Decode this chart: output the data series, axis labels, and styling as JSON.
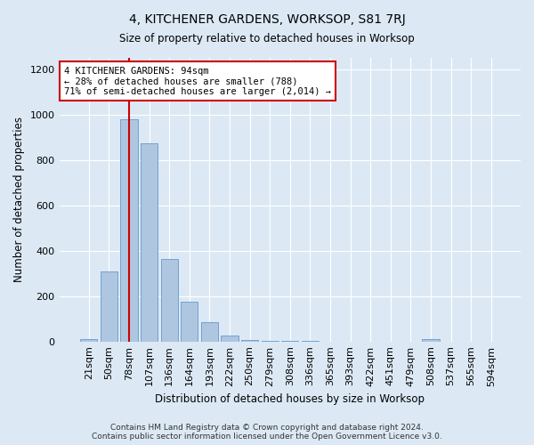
{
  "title": "4, KITCHENER GARDENS, WORKSOP, S81 7RJ",
  "subtitle": "Size of property relative to detached houses in Worksop",
  "xlabel": "Distribution of detached houses by size in Worksop",
  "ylabel": "Number of detached properties",
  "bar_labels": [
    "21sqm",
    "50sqm",
    "78sqm",
    "107sqm",
    "136sqm",
    "164sqm",
    "193sqm",
    "222sqm",
    "250sqm",
    "279sqm",
    "308sqm",
    "336sqm",
    "365sqm",
    "393sqm",
    "422sqm",
    "451sqm",
    "479sqm",
    "508sqm",
    "537sqm",
    "565sqm",
    "594sqm"
  ],
  "bar_values": [
    10,
    310,
    980,
    875,
    365,
    175,
    85,
    25,
    5,
    2,
    1,
    1,
    0,
    0,
    0,
    0,
    0,
    10,
    0,
    0,
    0
  ],
  "bar_color": "#aec6e0",
  "bar_edge_color": "#6699cc",
  "vline_x_index": 2,
  "vline_color": "#cc0000",
  "ylim": [
    0,
    1250
  ],
  "yticks": [
    0,
    200,
    400,
    600,
    800,
    1000,
    1200
  ],
  "annotation_text": "4 KITCHENER GARDENS: 94sqm\n← 28% of detached houses are smaller (788)\n71% of semi-detached houses are larger (2,014) →",
  "annotation_box_facecolor": "#ffffff",
  "annotation_box_edgecolor": "#cc0000",
  "footer_text": "Contains HM Land Registry data © Crown copyright and database right 2024.\nContains public sector information licensed under the Open Government Licence v3.0.",
  "bg_color": "#dce9f5",
  "grid_color": "#ffffff"
}
